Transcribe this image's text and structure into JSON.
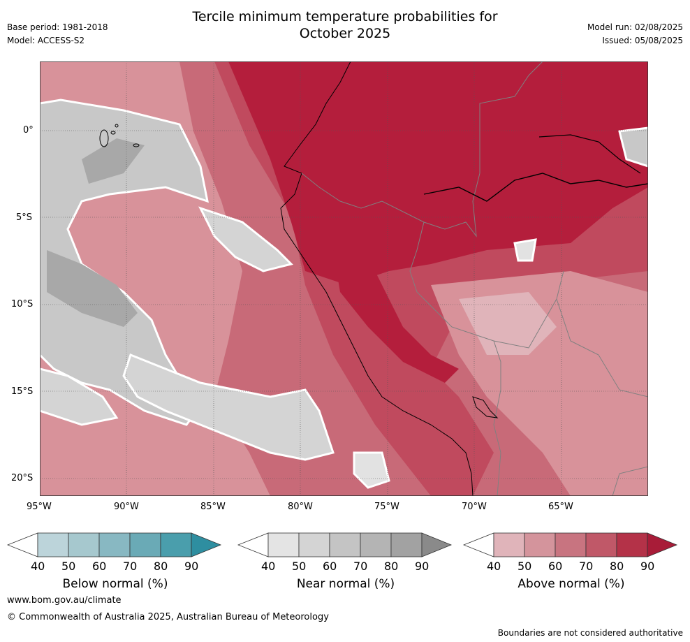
{
  "header": {
    "title_line1": "Tercile minimum temperature probabilities for",
    "title_line2": "October 2025",
    "base_period": "Base period: 1981-2018",
    "model": "Model: ACCESS-S2",
    "model_run": "Model run: 02/08/2025",
    "issued": "Issued: 05/08/2025"
  },
  "map": {
    "lat_labels": [
      "0°",
      "5°S",
      "10°S",
      "15°S",
      "20°S"
    ],
    "lon_labels": [
      "95°W",
      "90°W",
      "85°W",
      "80°W",
      "75°W",
      "70°W",
      "65°W"
    ],
    "colors": {
      "ocean_red_light": "#d8929a",
      "red_mid": "#c86a78",
      "red_strong": "#c04a5e",
      "red_max": "#b41e3c",
      "grey_light": "#e2e2e2",
      "grey_mid": "#c8c8c8",
      "grey_dark": "#a8a8a8"
    }
  },
  "colorbars": [
    {
      "label": "Below normal (%)",
      "ticks": [
        "40",
        "50",
        "60",
        "70",
        "80",
        "90"
      ],
      "colors": [
        "#bcd4da",
        "#a6c8ce",
        "#88b8c2",
        "#6aaab6",
        "#4a9eac",
        "#2e8ea0"
      ]
    },
    {
      "label": "Near normal (%)",
      "ticks": [
        "40",
        "50",
        "60",
        "70",
        "80",
        "90"
      ],
      "colors": [
        "#e4e4e4",
        "#d4d4d4",
        "#c4c4c4",
        "#b4b4b4",
        "#a2a2a2",
        "#8a8a8a"
      ]
    },
    {
      "label": "Above normal (%)",
      "ticks": [
        "40",
        "50",
        "60",
        "70",
        "80",
        "90"
      ],
      "colors": [
        "#e0b4ba",
        "#d4949c",
        "#c87480",
        "#c05868",
        "#b43248",
        "#a81c38"
      ]
    }
  ],
  "footer": {
    "url": "www.bom.gov.au/climate",
    "copyright": "© Commonwealth of Australia 2025, Australian Bureau of Meteorology",
    "disclaimer": "Boundaries are not considered authoritative"
  }
}
